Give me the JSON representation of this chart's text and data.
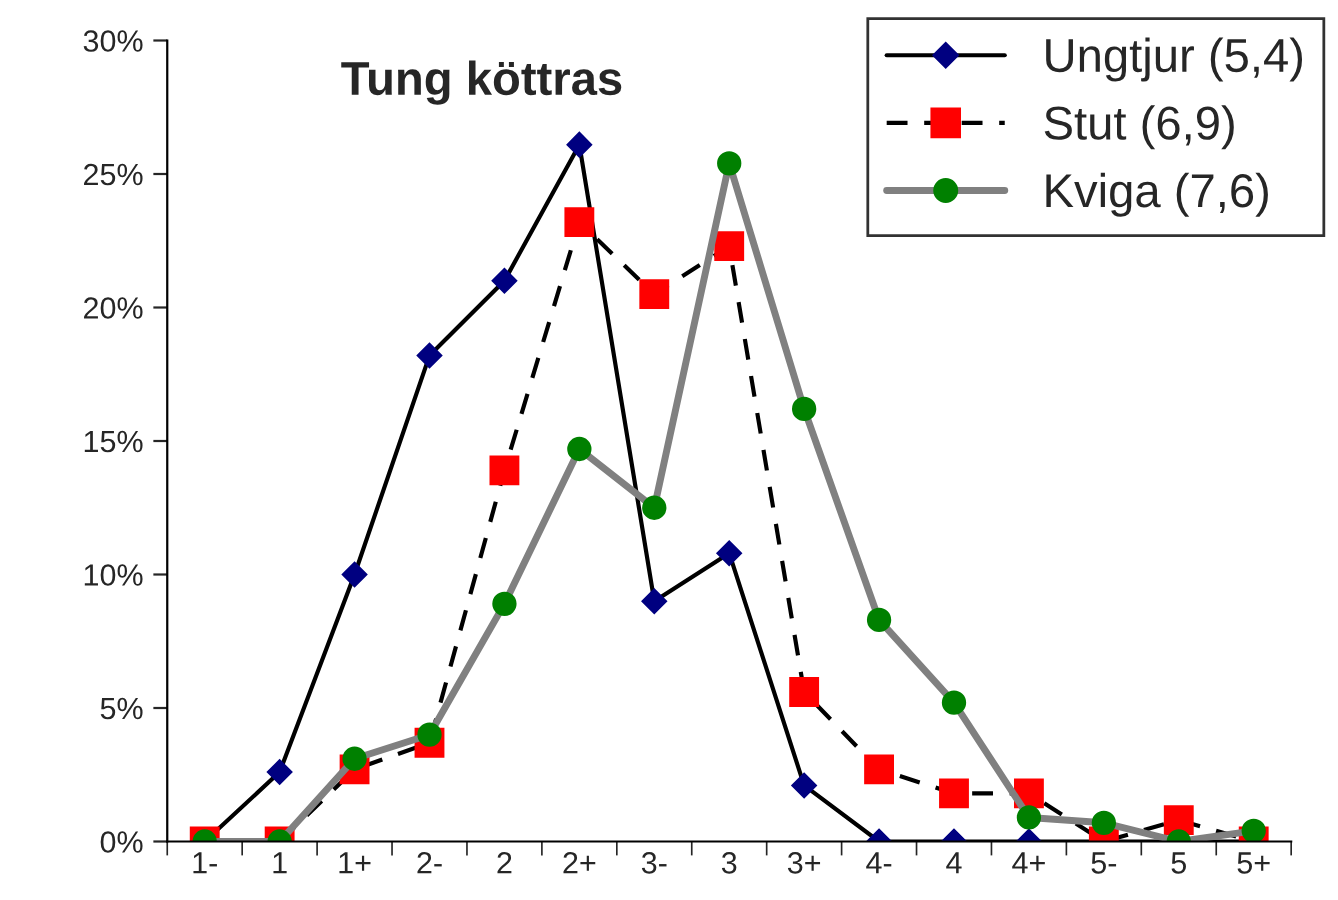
{
  "chart_data": {
    "type": "line",
    "title": "Tung köttras",
    "categories": [
      "1-",
      "1",
      "1+",
      "2-",
      "2",
      "2+",
      "3-",
      "3",
      "3+",
      "4-",
      "4",
      "4+",
      "5-",
      "5",
      "5+"
    ],
    "series": [
      {
        "name": "Ungtjur (5,4)",
        "color": "#000080",
        "marker": "diamond",
        "line_style": "solid",
        "values": [
          0,
          2.6,
          10.0,
          18.2,
          21.0,
          26.1,
          9.0,
          10.8,
          2.1,
          0,
          0,
          0,
          0,
          0,
          0
        ]
      },
      {
        "name": "Stut (6,9)",
        "color": "#ff0000",
        "marker": "square",
        "line_style": "dashed",
        "values": [
          0,
          0,
          2.7,
          3.7,
          13.9,
          23.2,
          20.5,
          22.3,
          5.6,
          2.7,
          1.8,
          1.8,
          0,
          0.8,
          0
        ]
      },
      {
        "name": "Kviga (7,6)",
        "color": "#008000",
        "marker": "circle",
        "line_style": "solid",
        "values": [
          0,
          0,
          3.1,
          4.0,
          8.9,
          14.7,
          12.5,
          25.4,
          16.2,
          8.3,
          5.2,
          0.9,
          0.7,
          0,
          0.4
        ]
      }
    ],
    "ylim": [
      0,
      30
    ],
    "yticks": [
      {
        "value": 0,
        "label": "0%"
      },
      {
        "value": 5,
        "label": "5%"
      },
      {
        "value": 10,
        "label": "10%"
      },
      {
        "value": 15,
        "label": "15%"
      },
      {
        "value": 20,
        "label": "20%"
      },
      {
        "value": 25,
        "label": "25%"
      },
      {
        "value": 30,
        "label": "30%"
      }
    ],
    "grid": false,
    "legend": "top right"
  }
}
